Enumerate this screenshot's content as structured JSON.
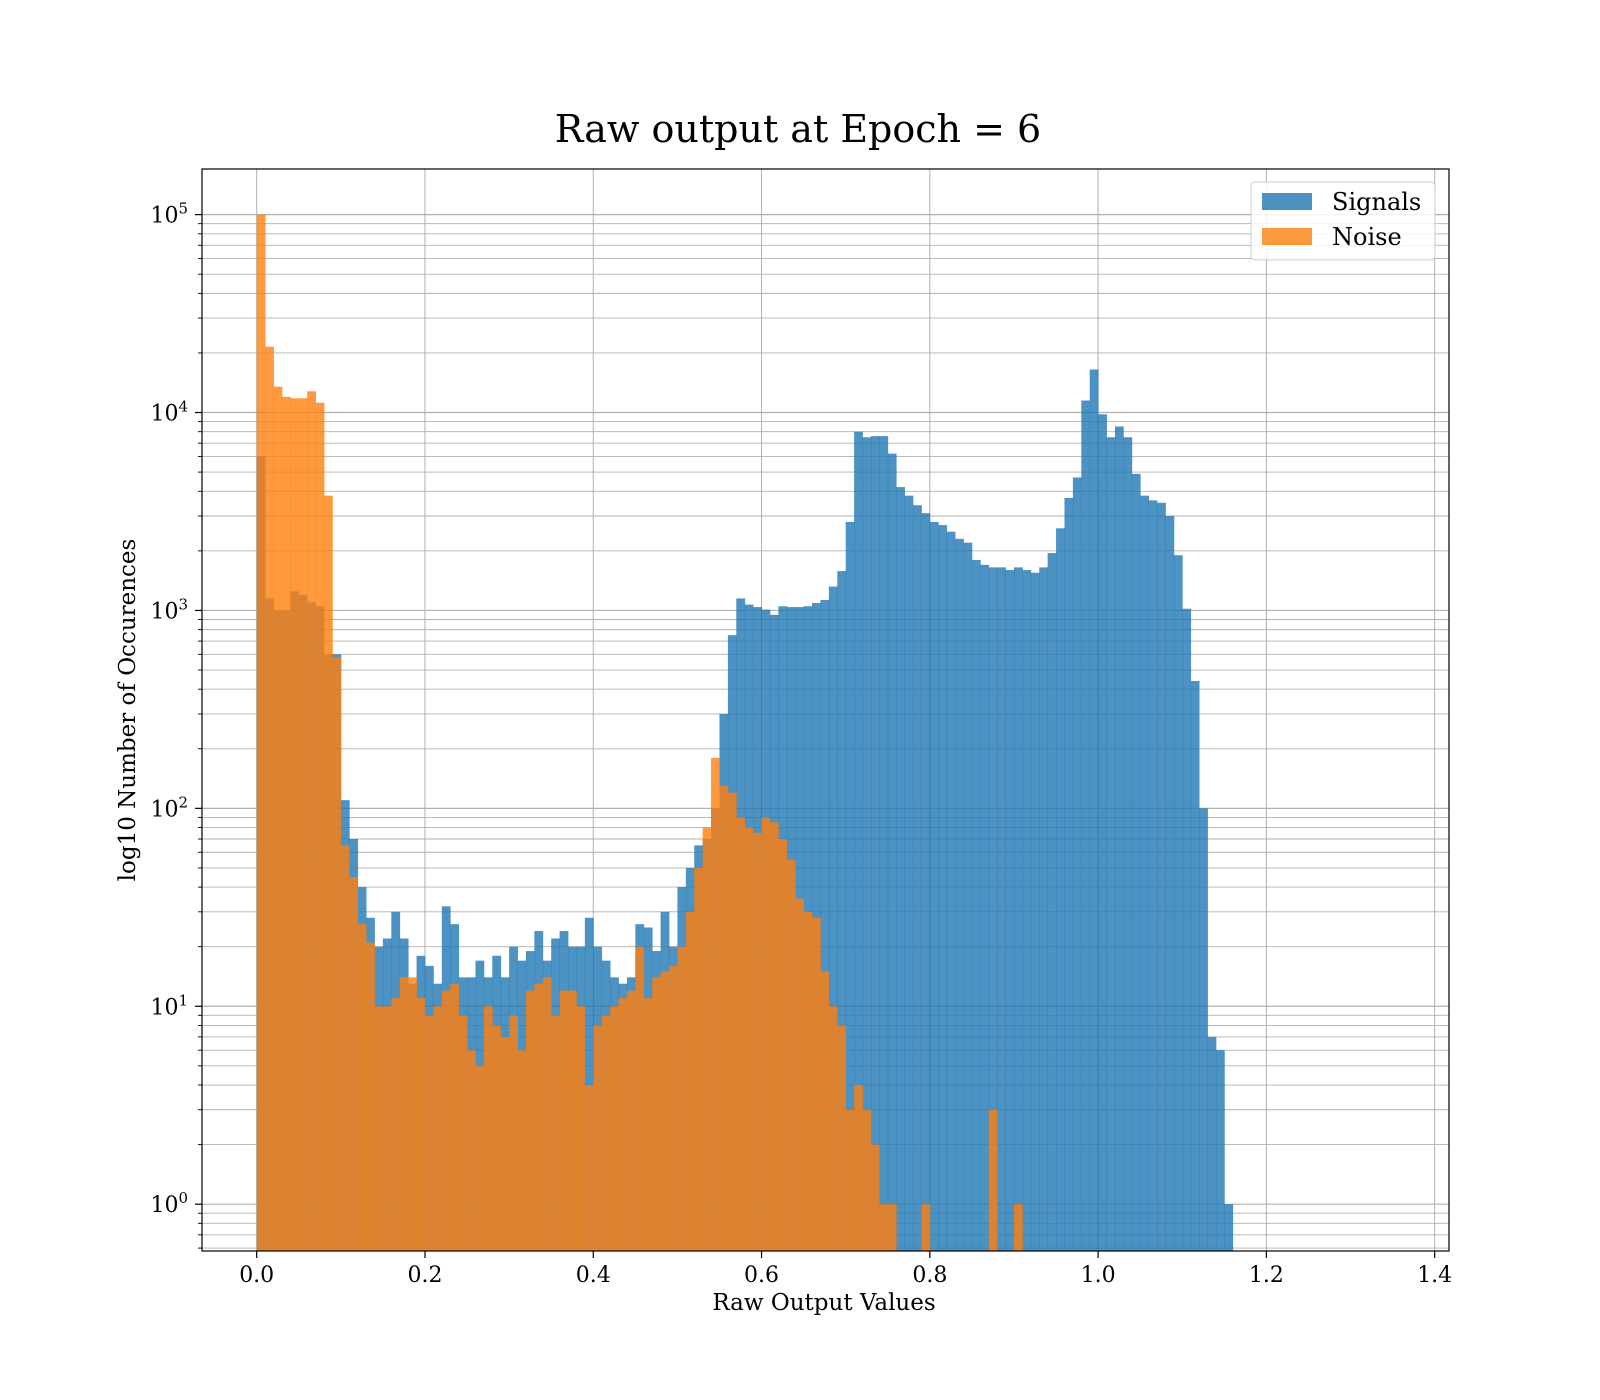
{
  "chart_data": {
    "type": "bar",
    "title": "Raw output at Epoch = 6",
    "xlabel": "Raw Output Values",
    "ylabel": "log10 Number of Occurences",
    "xlim": [
      -0.065,
      1.417
    ],
    "ylim": [
      0.58,
      170000
    ],
    "y_scale": "log",
    "grid": true,
    "legend_position": "top-right",
    "bin_width": 0.01,
    "x_ticks": [
      0.0,
      0.2,
      0.4,
      0.6,
      0.8,
      1.0,
      1.2,
      1.4
    ],
    "x_tick_labels": [
      "0.0",
      "0.2",
      "0.4",
      "0.6",
      "0.8",
      "1.0",
      "1.2",
      "1.4"
    ],
    "y_ticks": [
      {
        "value": 1,
        "base": "10",
        "exp": "0"
      },
      {
        "value": 10,
        "base": "10",
        "exp": "1"
      },
      {
        "value": 100,
        "base": "10",
        "exp": "2"
      },
      {
        "value": 1000,
        "base": "10",
        "exp": "3"
      },
      {
        "value": 10000,
        "base": "10",
        "exp": "4"
      },
      {
        "value": 100000,
        "base": "10",
        "exp": "5"
      }
    ],
    "series": [
      {
        "name": "Signals",
        "color": "#1f77b4",
        "opacity": 0.8,
        "bin_start": 0.0,
        "values": [
          6000,
          1150,
          1000,
          1000,
          1250,
          1200,
          1100,
          1050,
          600,
          600,
          110,
          70,
          40,
          28,
          20,
          22,
          30,
          22,
          13,
          18,
          16,
          13,
          32,
          26,
          14,
          14,
          17,
          14,
          18,
          14,
          20,
          17,
          19,
          24,
          17,
          22,
          24,
          20,
          20,
          28,
          20,
          17,
          14,
          13,
          14,
          26,
          25,
          19,
          30,
          20,
          40,
          50,
          65,
          70,
          100,
          300,
          750,
          1150,
          1070,
          1040,
          1010,
          950,
          1050,
          1040,
          1040,
          1050,
          1090,
          1130,
          1320,
          1580,
          2800,
          8000,
          7500,
          7600,
          7600,
          6200,
          4200,
          3800,
          3400,
          3100,
          2800,
          2700,
          2500,
          2300,
          2200,
          1800,
          1700,
          1650,
          1650,
          1600,
          1650,
          1600,
          1550,
          1650,
          1950,
          2600,
          3700,
          4700,
          11500,
          16500,
          9800,
          7500,
          8500,
          7500,
          4900,
          3800,
          3600,
          3500,
          3000,
          1900,
          1020,
          440,
          100,
          7,
          6,
          1
        ]
      },
      {
        "name": "Noise",
        "color": "#ff7f0e",
        "opacity": 0.8,
        "bin_start": 0.0,
        "values": [
          100000,
          21500,
          13500,
          12000,
          11800,
          11800,
          12800,
          11200,
          3800,
          580,
          65,
          45,
          26,
          21,
          10,
          10,
          11,
          14,
          14,
          11,
          9,
          10,
          12,
          13,
          9,
          6,
          5,
          10,
          8,
          7,
          9,
          6,
          12,
          13,
          14,
          9,
          12,
          12,
          10,
          4,
          8,
          9,
          10,
          11,
          12,
          20,
          11,
          14,
          15,
          16,
          20,
          30,
          50,
          80,
          180,
          130,
          120,
          90,
          80,
          75,
          90,
          85,
          70,
          55,
          35,
          30,
          28,
          15,
          10,
          8,
          3,
          4,
          3,
          2,
          1,
          1,
          0,
          0,
          0,
          1,
          0,
          0,
          0,
          0,
          0,
          0,
          0,
          3,
          0,
          0,
          1,
          0,
          0,
          0,
          0,
          0,
          0,
          0,
          0,
          0,
          0,
          0,
          0,
          0,
          0,
          0,
          0,
          0,
          0,
          0,
          0,
          0,
          0,
          0,
          0,
          0
        ]
      }
    ]
  }
}
